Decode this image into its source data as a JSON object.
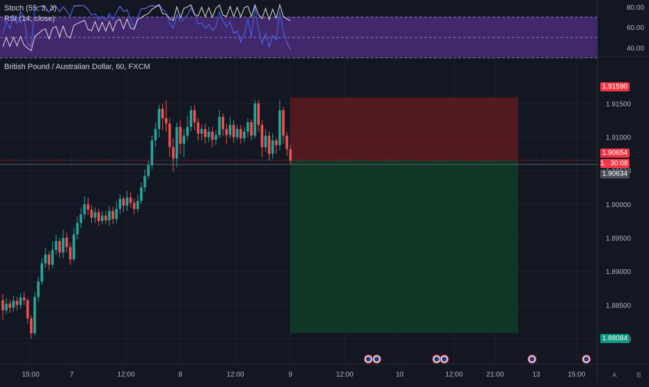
{
  "indicators": {
    "stoch_label": "Stoch (55, 3, 3)",
    "rsi_label": "RSI (14, close)",
    "axis_ticks": [
      {
        "value": 80,
        "label": "80.00"
      },
      {
        "value": 60,
        "label": "60.00"
      },
      {
        "value": 40,
        "label": "40.00"
      }
    ],
    "upper_band": 70,
    "mid_band": 50,
    "lower_band": 30,
    "range": [
      32,
      84
    ],
    "band_color": "#4a2c7a",
    "stoch_k_color": "#2962ff",
    "stoch_d_color": "#ef5350",
    "rsi_color": "#e0e0e0"
  },
  "main_chart": {
    "title": "British Pound / Australian Dollar, 60, FXCM",
    "price_range": [
      1.8785,
      1.9195
    ],
    "y_ticks": [
      {
        "value": 1.915,
        "label": "1.91500"
      },
      {
        "value": 1.91,
        "label": "1.91000"
      },
      {
        "value": 1.905,
        "label": "1.90500"
      },
      {
        "value": 1.9,
        "label": "1.90000"
      },
      {
        "value": 1.895,
        "label": "1.89500"
      },
      {
        "value": 1.89,
        "label": "1.89000"
      },
      {
        "value": 1.885,
        "label": "1.88500"
      },
      {
        "value": 1.88,
        "label": "1.88000"
      }
    ],
    "x_ticks": [
      "15:00",
      "7",
      "12:00",
      "8",
      "12:00",
      "9",
      "12:00",
      "10",
      "12:00",
      "21:00",
      "13",
      "15:00"
    ],
    "tags": {
      "stop_loss": {
        "label": "1.91590",
        "value": 1.9159,
        "color": "#f23645"
      },
      "current": {
        "label": "1.90654",
        "value": 1.90654,
        "color": "#f23645"
      },
      "countdown": {
        "label": "30:08",
        "color": "#f23645"
      },
      "partial": {
        "label": "1.",
        "color": "#f23645"
      },
      "bid": {
        "label": "1.90634",
        "value": 1.90634,
        "color": "#4a4e59"
      },
      "take_profit": {
        "label": "1.88084",
        "value": 1.88084,
        "color": "#089981"
      }
    },
    "position": {
      "entry": 1.90654,
      "stop": 1.9159,
      "target": 1.88084,
      "loss_color": "#5b1a21",
      "profit_color": "#113a26"
    },
    "candle_colors": {
      "up": "#26a69a",
      "down": "#ef5350"
    },
    "axis_icons": {
      "auto_scale": "A",
      "log_scale": "B"
    }
  },
  "chart_data": {
    "type": "candlestick",
    "title": "British Pound / Australian Dollar, 60, FXCM",
    "ylim": [
      1.8785,
      1.9195
    ],
    "candles": [
      [
        1.8857,
        1.8842,
        1.8866,
        1.8828
      ],
      [
        1.8842,
        1.8852,
        1.886,
        1.8836
      ],
      [
        1.8852,
        1.8846,
        1.8858,
        1.8838
      ],
      [
        1.8846,
        1.8856,
        1.8864,
        1.884
      ],
      [
        1.8856,
        1.885,
        1.8862,
        1.8842
      ],
      [
        1.885,
        1.8861,
        1.8868,
        1.8844
      ],
      [
        1.8861,
        1.8857,
        1.8869,
        1.885
      ],
      [
        1.8857,
        1.883,
        1.886,
        1.8822
      ],
      [
        1.883,
        1.8808,
        1.8835,
        1.88
      ],
      [
        1.8808,
        1.8862,
        1.887,
        1.8805
      ],
      [
        1.8862,
        1.8885,
        1.8892,
        1.8855
      ],
      [
        1.8885,
        1.8912,
        1.892,
        1.888
      ],
      [
        1.8912,
        1.8925,
        1.8935,
        1.8905
      ],
      [
        1.8925,
        1.891,
        1.893,
        1.8902
      ],
      [
        1.891,
        1.8932,
        1.8945,
        1.8905
      ],
      [
        1.8932,
        1.8945,
        1.8955,
        1.8925
      ],
      [
        1.8945,
        1.8928,
        1.895,
        1.892
      ],
      [
        1.8928,
        1.895,
        1.8962,
        1.892
      ],
      [
        1.895,
        1.8936,
        1.8958,
        1.8928
      ],
      [
        1.8936,
        1.8918,
        1.8942,
        1.891
      ],
      [
        1.8918,
        1.8955,
        1.8965,
        1.8915
      ],
      [
        1.8955,
        1.8972,
        1.8982,
        1.8948
      ],
      [
        1.8972,
        1.8985,
        1.8995,
        1.8965
      ],
      [
        1.8985,
        1.9,
        1.9012,
        1.8978
      ],
      [
        1.9,
        1.8992,
        1.901,
        1.8984
      ],
      [
        1.8992,
        1.898,
        1.8998,
        1.8972
      ],
      [
        1.898,
        1.8988,
        1.8995,
        1.8972
      ],
      [
        1.8988,
        1.8975,
        1.8993,
        1.8968
      ],
      [
        1.8975,
        1.8983,
        1.899,
        1.897
      ],
      [
        1.8983,
        1.8976,
        1.899,
        1.897
      ],
      [
        1.8976,
        1.899,
        1.8998,
        1.8968
      ],
      [
        1.899,
        1.8978,
        1.8996,
        1.897
      ],
      [
        1.8978,
        1.8993,
        1.9005,
        1.8972
      ],
      [
        1.8993,
        1.9008,
        1.9015,
        1.8985
      ],
      [
        1.9008,
        1.8998,
        1.9012,
        1.8988
      ],
      [
        1.8998,
        1.901,
        1.902,
        1.899
      ],
      [
        1.901,
        1.9002,
        1.9018,
        1.8995
      ],
      [
        1.9002,
        1.8993,
        1.9008,
        1.8985
      ],
      [
        1.8993,
        1.9005,
        1.9015,
        1.8988
      ],
      [
        1.9005,
        1.9025,
        1.9032,
        1.9
      ],
      [
        1.9025,
        1.9042,
        1.9052,
        1.9018
      ],
      [
        1.9042,
        1.9058,
        1.9065,
        1.9038
      ],
      [
        1.9058,
        1.9095,
        1.9102,
        1.9052
      ],
      [
        1.9095,
        1.9112,
        1.9122,
        1.9085
      ],
      [
        1.9112,
        1.9142,
        1.9148,
        1.91
      ],
      [
        1.9142,
        1.9128,
        1.915,
        1.911
      ],
      [
        1.9128,
        1.912,
        1.9155,
        1.9108
      ],
      [
        1.912,
        1.9085,
        1.9128,
        1.907
      ],
      [
        1.9085,
        1.9068,
        1.9098,
        1.9048
      ],
      [
        1.9068,
        1.9115,
        1.9122,
        1.9055
      ],
      [
        1.9115,
        1.909,
        1.9125,
        1.9075
      ],
      [
        1.909,
        1.9102,
        1.9112,
        1.907
      ],
      [
        1.9102,
        1.9115,
        1.9132,
        1.9095
      ],
      [
        1.9115,
        1.914,
        1.9146,
        1.9108
      ],
      [
        1.914,
        1.9122,
        1.9148,
        1.911
      ],
      [
        1.9122,
        1.9105,
        1.9128,
        1.9095
      ],
      [
        1.9105,
        1.9112,
        1.9118,
        1.9095
      ],
      [
        1.9112,
        1.91,
        1.912,
        1.909
      ],
      [
        1.91,
        1.9108,
        1.9115,
        1.9092
      ],
      [
        1.9108,
        1.9096,
        1.9115,
        1.9085
      ],
      [
        1.9096,
        1.9103,
        1.911,
        1.9088
      ],
      [
        1.9103,
        1.913,
        1.914,
        1.9098
      ],
      [
        1.913,
        1.9112,
        1.9135,
        1.9102
      ],
      [
        1.9112,
        1.9103,
        1.912,
        1.909
      ],
      [
        1.9103,
        1.9118,
        1.913,
        1.9098
      ],
      [
        1.9118,
        1.91,
        1.9125,
        1.9092
      ],
      [
        1.91,
        1.9112,
        1.9118,
        1.9096
      ],
      [
        1.9112,
        1.9098,
        1.9118,
        1.909
      ],
      [
        1.9098,
        1.9108,
        1.9115,
        1.9092
      ],
      [
        1.9108,
        1.9122,
        1.9128,
        1.91
      ],
      [
        1.9122,
        1.9102,
        1.9126,
        1.9095
      ],
      [
        1.9102,
        1.915,
        1.9155,
        1.9098
      ],
      [
        1.915,
        1.9118,
        1.9155,
        1.9108
      ],
      [
        1.9118,
        1.9085,
        1.9125,
        1.907
      ],
      [
        1.9085,
        1.9102,
        1.9112,
        1.9078
      ],
      [
        1.9102,
        1.9075,
        1.9108,
        1.9065
      ],
      [
        1.9075,
        1.9095,
        1.9105,
        1.9068
      ],
      [
        1.9095,
        1.9088,
        1.9098,
        1.9075
      ],
      [
        1.9088,
        1.914,
        1.9155,
        1.908
      ],
      [
        1.914,
        1.9102,
        1.9145,
        1.909
      ],
      [
        1.9102,
        1.9082,
        1.9108,
        1.9072
      ],
      [
        1.9082,
        1.9065,
        1.9088,
        1.906
      ]
    ]
  }
}
